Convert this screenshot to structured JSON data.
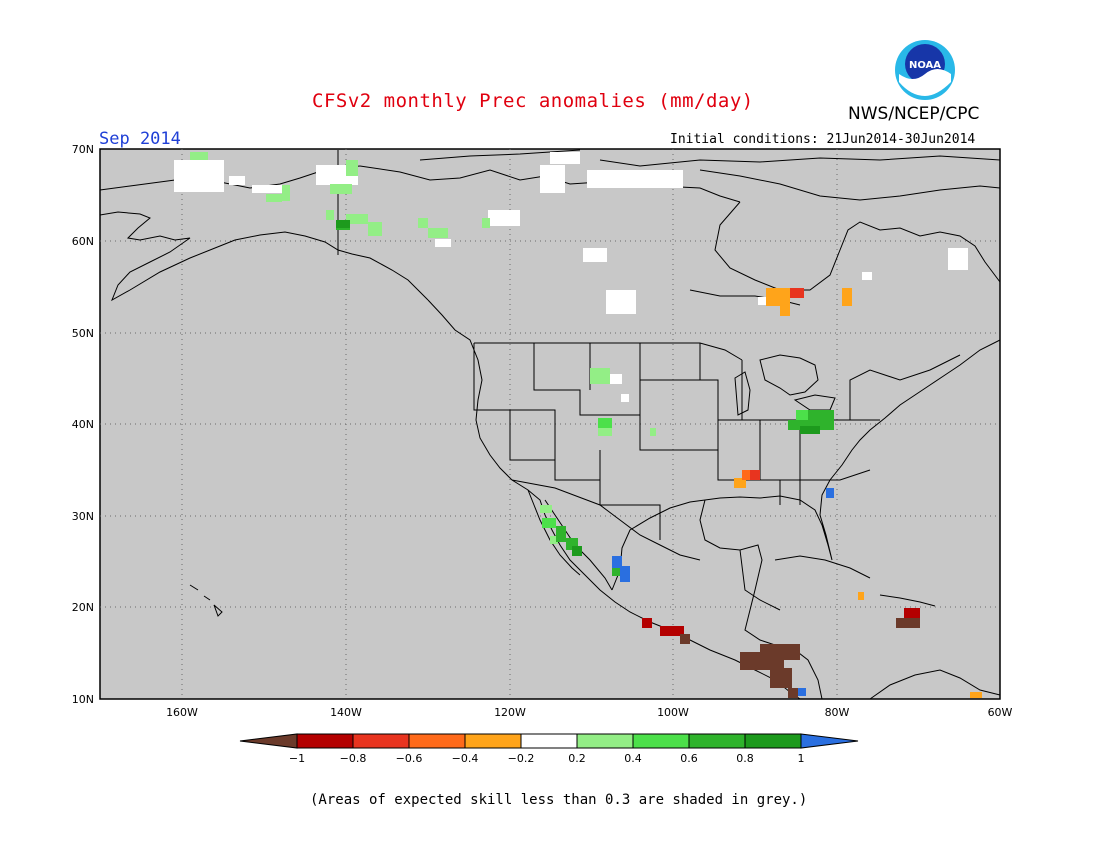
{
  "header": {
    "title": "CFSv2 monthly Prec anomalies (mm/day)",
    "agency": "NWS/NCEP/CPC",
    "logo_text": "NOAA",
    "month": "Sep 2014",
    "initial_conditions": "Initial conditions: 21Jun2014-30Jun2014"
  },
  "map": {
    "lat_labels": [
      "70N",
      "60N",
      "50N",
      "40N",
      "30N",
      "20N",
      "10N"
    ],
    "lon_labels": [
      "160W",
      "140W",
      "120W",
      "100W",
      "80W",
      "60W"
    ],
    "background_color": "#c8c8c8"
  },
  "legend": {
    "tick_labels": [
      "−1",
      "−0.8",
      "−0.6",
      "−0.4",
      "−0.2",
      "0.2",
      "0.4",
      "0.6",
      "0.8",
      "1"
    ],
    "colors": [
      "#6b3a2a",
      "#b40000",
      "#e8341f",
      "#ff6a1a",
      "#ffa41a",
      "#ffffff",
      "#93ee86",
      "#4ce04a",
      "#2fb32c",
      "#1d9a1d",
      "#2a6fe0"
    ]
  },
  "footnote": "(Areas of expected skill less than 0.3 are shaded in grey.)"
}
